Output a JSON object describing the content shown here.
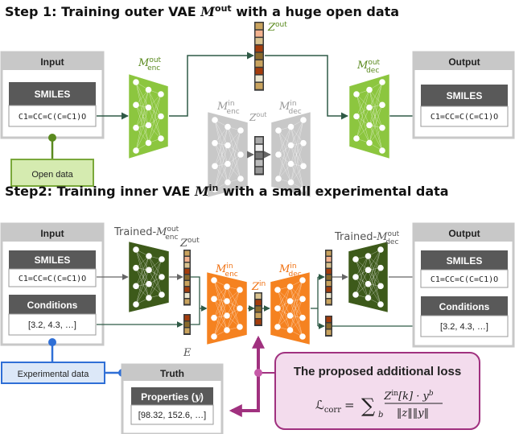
{
  "step1": {
    "title": "Step 1: Training outer VAE ",
    "title_m": "M",
    "title_sup": "out",
    "title_rest": " with a huge open data",
    "input": {
      "header": "Input",
      "field_header": "SMILES",
      "field_value": "C1=CC=C(C=C1)O"
    },
    "output": {
      "header": "Output",
      "field_header": "SMILES",
      "field_value": "C1=CC=C(C=C1)O"
    },
    "open_data": "Open data",
    "enc_label": {
      "m": "M",
      "sup": "out",
      "sub": "enc"
    },
    "dec_label": {
      "m": "M",
      "sup": "out",
      "sub": "dec"
    },
    "z_label": {
      "z": "Z",
      "sup": "out"
    },
    "inner_enc_label": {
      "m": "M",
      "sup": "in",
      "sub": "enc"
    },
    "inner_dec_label": {
      "m": "M",
      "sup": "in",
      "sub": "dec"
    },
    "inner_z_label": {
      "z": "Z",
      "sup": "out"
    }
  },
  "step2": {
    "title": "Step2: Training inner VAE ",
    "title_m": "M",
    "title_sup": "in",
    "title_rest": " with a small experimental data",
    "input": {
      "header": "Input",
      "smiles_header": "SMILES",
      "smiles_value": "C1=CC=C(C=C1)O",
      "cond_header": "Conditions",
      "cond_value": "[3.2, 4.3, …]"
    },
    "output": {
      "header": "Output",
      "smiles_header": "SMILES",
      "smiles_value": "C1=CC=C(C=C1)O",
      "cond_header": "Conditions",
      "cond_value": "[3.2, 4.3, …]"
    },
    "trained_enc_label": {
      "prefix": "Trained-",
      "m": "M",
      "sup": "out",
      "sub": "enc"
    },
    "trained_dec_label": {
      "prefix": "Trained-",
      "m": "M",
      "sup": "out",
      "sub": "dec"
    },
    "z_out_label": {
      "z": "Z",
      "sup": "out"
    },
    "e_label": "E",
    "enc_in_label": {
      "m": "M",
      "sup": "in",
      "sub": "enc"
    },
    "dec_in_label": {
      "m": "M",
      "sup": "in",
      "sub": "dec"
    },
    "z_in_label": {
      "z": "Z",
      "sup": "in"
    },
    "experimental_data": "Experimental data",
    "truth": {
      "header": "Truth",
      "field_header": "Properties (",
      "field_y": "y",
      "field_close": ")",
      "field_value": "[98.32, 152.6, …]"
    },
    "loss": {
      "title": "The proposed additional loss",
      "lhs": "ℒ",
      "lhs_sub": "corr",
      "eq": "=",
      "sum": "∑",
      "sum_sub": "b",
      "num": "Z",
      "num_sup": "in",
      "num_rest": "[k] · y",
      "num_sup2": "b",
      "den": "‖z‖‖y‖"
    }
  },
  "colors": {
    "green_light": "#8cc63f",
    "green_dark": "#3d5a1a",
    "orange": "#f58220",
    "gray_net": "#c8c8c8",
    "box_gray": "#c8c8c8",
    "dark_header": "#595959",
    "blue": "#2f6fd6",
    "purple": "#a0317f",
    "loss_fill": "#f3dced",
    "open_data_fill": "#d5ebb0",
    "exp_fill": "#dce8f8",
    "label_green": "#5a8a1e",
    "label_orange": "#f07010"
  },
  "z_colors": {
    "outer": [
      "#c9a35e",
      "#f3b28f",
      "#d9c28f",
      "#a33c0c",
      "#8a6a2d",
      "#c9a35e",
      "#a33c0c",
      "#ece6cd",
      "#c9a35e"
    ],
    "inner_gray": [
      "#aaaaaa",
      "#eeeeee",
      "#777777",
      "#bbbbbb",
      "#999999"
    ],
    "inner": [
      "#d9c28f",
      "#a33c0c",
      "#8a6a2d",
      "#c9a35e",
      "#a33c0c"
    ],
    "e": [
      "#a33c0c",
      "#8a6a2d",
      "#c9a35e"
    ]
  }
}
